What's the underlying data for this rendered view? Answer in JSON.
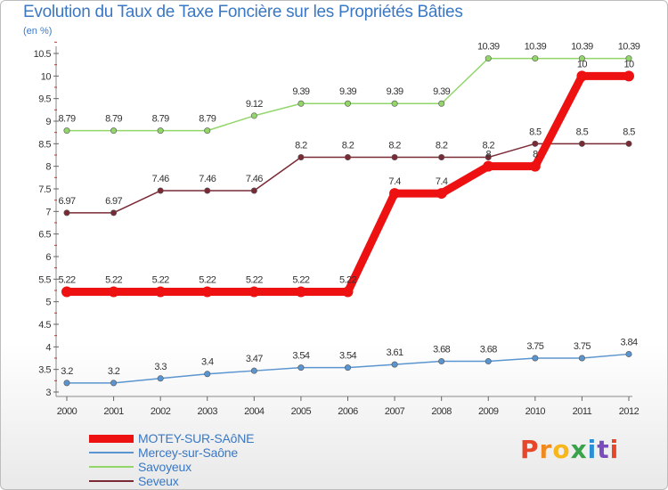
{
  "title": "Evolution du Taux de Taxe Foncière sur les Propriétés Bâties",
  "subtitle": "(en %)",
  "logo": {
    "text": "Proxiti",
    "letters": [
      "P",
      "r",
      "o",
      "x",
      "i",
      "t",
      "i"
    ],
    "colors": [
      "#e6462a",
      "#f08a1e",
      "#f7b61b",
      "#3aa24a",
      "#2a8fd4",
      "#7a4dbd",
      "#e6462a"
    ]
  },
  "chart_data": {
    "type": "line",
    "title": "Evolution du Taux de Taxe Foncière sur les Propriétés Bâties",
    "ylabel": "(en %)",
    "xlabel": "",
    "ylim": [
      3,
      10.5
    ],
    "yticks": [
      "3",
      "3.5",
      "4",
      "4.5",
      "5",
      "5.5",
      "6",
      "6.5",
      "7",
      "7.5",
      "8",
      "8.5",
      "9",
      "9.5",
      "10",
      "10.5"
    ],
    "categories": [
      "2000",
      "2001",
      "2002",
      "2003",
      "2004",
      "2005",
      "2006",
      "2007",
      "2008",
      "2009",
      "2010",
      "2011",
      "2012"
    ],
    "grid": false,
    "series": [
      {
        "name": "MOTEY-SUR-SAôNE",
        "color": "#ee1111",
        "emphasis": true,
        "values": [
          5.22,
          5.22,
          5.22,
          5.22,
          5.22,
          5.22,
          5.22,
          7.4,
          7.4,
          8,
          8,
          10,
          10
        ],
        "labels": [
          "5.22",
          "5.22",
          "5.22",
          "5.22",
          "5.22",
          "5.22",
          "5.22",
          "7.4",
          "7.4",
          "8",
          "8",
          "10",
          "10"
        ]
      },
      {
        "name": "Mercey-sur-Saône",
        "color": "#5b95cf",
        "emphasis": false,
        "values": [
          3.2,
          3.2,
          3.3,
          3.4,
          3.47,
          3.54,
          3.54,
          3.61,
          3.68,
          3.68,
          3.75,
          3.75,
          3.84
        ],
        "labels": [
          "3.2",
          "3.2",
          "3.3",
          "3.4",
          "3.47",
          "3.54",
          "3.54",
          "3.61",
          "3.68",
          "3.68",
          "3.75",
          "3.75",
          "3.84"
        ]
      },
      {
        "name": "Savoyeux",
        "color": "#92d66a",
        "emphasis": false,
        "values": [
          8.79,
          8.79,
          8.79,
          8.79,
          9.12,
          9.39,
          9.39,
          9.39,
          9.39,
          10.39,
          10.39,
          10.39,
          10.39
        ],
        "labels": [
          "8.79",
          "8.79",
          "8.79",
          "8.79",
          "9.12",
          "9.39",
          "9.39",
          "9.39",
          "9.39",
          "10.39",
          "10.39",
          "10.39",
          "10.39"
        ]
      },
      {
        "name": "Seveux",
        "color": "#7a2a35",
        "emphasis": false,
        "values": [
          6.97,
          6.97,
          7.46,
          7.46,
          7.46,
          8.2,
          8.2,
          8.2,
          8.2,
          8.2,
          8.5,
          8.5,
          8.5
        ],
        "labels": [
          "6.97",
          "6.97",
          "7.46",
          "7.46",
          "7.46",
          "8.2",
          "8.2",
          "8.2",
          "8.2",
          "8.2",
          "8.5",
          "8.5",
          "8.5"
        ]
      }
    ],
    "legend": "bottom-left"
  }
}
